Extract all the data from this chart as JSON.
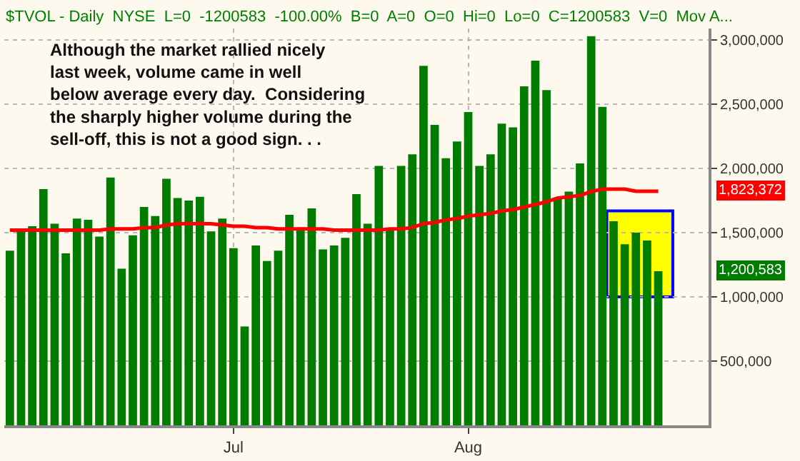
{
  "chart_data": {
    "type": "bar",
    "title": "$TVOL - Daily  NYSE  L=0  -1200583  -100.00%  B=0  A=0  O=0  Hi=0  Lo=0  C=1200583  V=0  Mov A...",
    "categories": [
      null,
      null,
      null,
      null,
      null,
      null,
      null,
      null,
      null,
      null,
      null,
      null,
      null,
      null,
      null,
      null,
      null,
      null,
      null,
      null,
      "Jul",
      null,
      null,
      null,
      null,
      null,
      null,
      null,
      null,
      null,
      null,
      null,
      null,
      null,
      null,
      null,
      null,
      null,
      null,
      null,
      null,
      "Aug",
      null,
      null,
      null,
      null,
      null,
      null,
      null,
      null,
      null,
      null,
      null,
      null,
      null,
      null,
      null,
      null,
      null
    ],
    "series": [
      {
        "color": "#007d00",
        "values": [
          1360000,
          1520000,
          1550000,
          1840000,
          1570000,
          1340000,
          1610000,
          1600000,
          1470000,
          1930000,
          1220000,
          1480000,
          1700000,
          1630000,
          1920000,
          1770000,
          1750000,
          1780000,
          1510000,
          1610000,
          1380000,
          770000,
          1400000,
          1280000,
          1360000,
          1640000,
          1530000,
          1690000,
          1370000,
          1400000,
          1460000,
          1800000,
          1570000,
          2020000,
          1530000,
          2020000,
          2110000,
          2800000,
          2340000,
          2080000,
          2210000,
          2440000,
          2020000,
          2110000,
          2350000,
          2320000,
          2640000,
          2840000,
          2610000,
          1770000,
          1820000,
          2040000,
          3030000,
          2480000,
          1590000,
          1410000,
          1500000,
          1440000,
          1200583
        ]
      },
      {
        "type": "line",
        "color": "#ff0000",
        "values": [
          1520000,
          1520000,
          1520000,
          1520000,
          1520000,
          1520000,
          1520000,
          1520000,
          1520000,
          1530000,
          1530000,
          1530000,
          1540000,
          1540000,
          1560000,
          1570000,
          1570000,
          1570000,
          1570000,
          1560000,
          1550000,
          1550000,
          1540000,
          1540000,
          1530000,
          1530000,
          1530000,
          1530000,
          1530000,
          1520000,
          1520000,
          1520000,
          1520000,
          1520000,
          1530000,
          1530000,
          1540000,
          1570000,
          1580000,
          1600000,
          1610000,
          1630000,
          1640000,
          1650000,
          1670000,
          1680000,
          1700000,
          1720000,
          1740000,
          1770000,
          1780000,
          1790000,
          1820000,
          1840000,
          1840000,
          1840000,
          1823372,
          1823372,
          1823372
        ]
      }
    ],
    "ylim": [
      0,
      3090000
    ],
    "yticks": [
      {
        "value": 500000,
        "label": "500,000"
      },
      {
        "value": 1000000,
        "label": "1,000,000"
      },
      {
        "value": 1500000,
        "label": "1,500,000"
      },
      {
        "value": 2000000,
        "label": "2,000,000"
      },
      {
        "value": 2500000,
        "label": "2,500,000"
      },
      {
        "value": 3000000,
        "label": "3,000,000"
      }
    ],
    "grid": true,
    "line_style": "solid",
    "bands": [
      {
        "axis": "y",
        "from": 1000000,
        "to": 1670000,
        "color": "#ffff00"
      }
    ],
    "annotations": [
      "Although the market rallied nicely\nlast week, volume came in well\nbelow average every day.  Considering\nthe sharply higher volume during the\nsell-off, this is not a good sign. . .",
      "1,200,583",
      "1,823,372"
    ]
  }
}
